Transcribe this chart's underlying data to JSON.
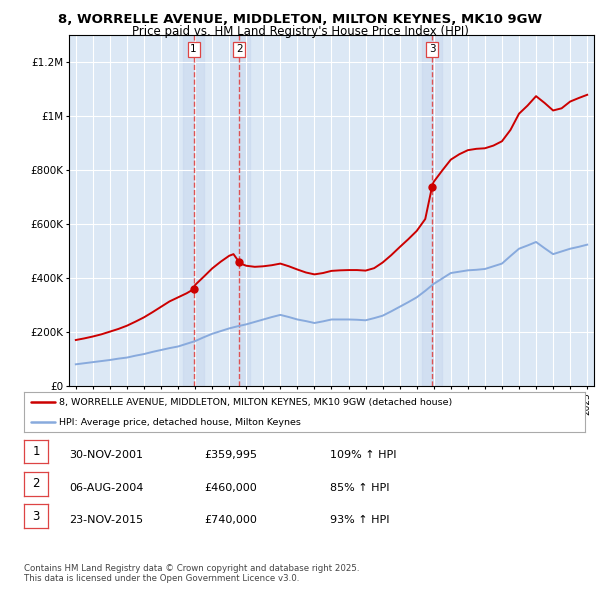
{
  "title": "8, WORRELLE AVENUE, MIDDLETON, MILTON KEYNES, MK10 9GW",
  "subtitle": "Price paid vs. HM Land Registry's House Price Index (HPI)",
  "title_fontsize": 9.5,
  "subtitle_fontsize": 8.5,
  "background_color": "#ffffff",
  "plot_bg_color": "#dce8f5",
  "grid_color": "#ffffff",
  "sale_color": "#cc0000",
  "hpi_color": "#88aadd",
  "vline_color": "#dd4444",
  "sale_dates_num": [
    2001.91,
    2004.59,
    2015.9
  ],
  "sale_prices": [
    359995,
    460000,
    740000
  ],
  "sale_labels": [
    "1",
    "2",
    "3"
  ],
  "legend_sale": "8, WORRELLE AVENUE, MIDDLETON, MILTON KEYNES, MK10 9GW (detached house)",
  "legend_hpi": "HPI: Average price, detached house, Milton Keynes",
  "table_data": [
    [
      "1",
      "30-NOV-2001",
      "£359,995",
      "109% ↑ HPI"
    ],
    [
      "2",
      "06-AUG-2004",
      "£460,000",
      "85% ↑ HPI"
    ],
    [
      "3",
      "23-NOV-2015",
      "£740,000",
      "93% ↑ HPI"
    ]
  ],
  "footer": "Contains HM Land Registry data © Crown copyright and database right 2025.\nThis data is licensed under the Open Government Licence v3.0.",
  "ylim": [
    0,
    1300000
  ],
  "yticks": [
    0,
    200000,
    400000,
    600000,
    800000,
    1000000,
    1200000
  ],
  "ytick_labels": [
    "£0",
    "£200K",
    "£400K",
    "£600K",
    "£800K",
    "£1M",
    "£1.2M"
  ],
  "hpi_x": [
    1995.0,
    1995.5,
    1996.0,
    1996.5,
    1997.0,
    1997.5,
    1998.0,
    1998.5,
    1999.0,
    1999.5,
    2000.0,
    2000.5,
    2001.0,
    2001.5,
    2002.0,
    2002.5,
    2003.0,
    2003.5,
    2004.0,
    2004.5,
    2005.0,
    2005.5,
    2006.0,
    2006.5,
    2007.0,
    2007.5,
    2008.0,
    2008.5,
    2009.0,
    2009.5,
    2010.0,
    2010.5,
    2011.0,
    2011.5,
    2012.0,
    2012.5,
    2013.0,
    2013.5,
    2014.0,
    2014.5,
    2015.0,
    2015.5,
    2016.0,
    2016.5,
    2017.0,
    2017.5,
    2018.0,
    2018.5,
    2019.0,
    2019.5,
    2020.0,
    2020.5,
    2021.0,
    2021.5,
    2022.0,
    2022.5,
    2023.0,
    2023.5,
    2024.0,
    2024.5,
    2025.0
  ],
  "hpi_y": [
    82000,
    86000,
    90000,
    94000,
    98000,
    103000,
    107000,
    114000,
    120000,
    128000,
    135000,
    142000,
    148000,
    158000,
    168000,
    182000,
    195000,
    205000,
    215000,
    223000,
    230000,
    239000,
    248000,
    257000,
    265000,
    257000,
    248000,
    242000,
    235000,
    241000,
    248000,
    248000,
    248000,
    247000,
    245000,
    253000,
    262000,
    278000,
    295000,
    312000,
    330000,
    354000,
    380000,
    400000,
    420000,
    425000,
    430000,
    432000,
    435000,
    445000,
    455000,
    483000,
    510000,
    522000,
    535000,
    512000,
    490000,
    500000,
    510000,
    517000,
    525000
  ],
  "prop_x": [
    1995.0,
    1995.5,
    1996.0,
    1996.5,
    1997.0,
    1997.5,
    1998.0,
    1998.5,
    1999.0,
    1999.5,
    2000.0,
    2000.5,
    2001.0,
    2001.5,
    2001.91,
    2002.0,
    2002.5,
    2003.0,
    2003.5,
    2004.0,
    2004.25,
    2004.59,
    2004.75,
    2005.0,
    2005.5,
    2006.0,
    2006.5,
    2007.0,
    2007.5,
    2008.0,
    2008.5,
    2009.0,
    2009.5,
    2010.0,
    2010.5,
    2011.0,
    2011.5,
    2012.0,
    2012.5,
    2013.0,
    2013.5,
    2014.0,
    2014.5,
    2015.0,
    2015.5,
    2015.9,
    2016.0,
    2016.5,
    2017.0,
    2017.5,
    2018.0,
    2018.5,
    2019.0,
    2019.5,
    2020.0,
    2020.5,
    2021.0,
    2021.5,
    2022.0,
    2022.5,
    2023.0,
    2023.5,
    2024.0,
    2024.5,
    2025.0
  ],
  "prop_y": [
    172000,
    178000,
    185000,
    193000,
    203000,
    213000,
    225000,
    240000,
    256000,
    275000,
    295000,
    315000,
    330000,
    345000,
    359995,
    376000,
    406000,
    437000,
    462000,
    484000,
    490000,
    460000,
    453000,
    447000,
    443000,
    445000,
    449000,
    455000,
    445000,
    433000,
    422000,
    415000,
    420000,
    428000,
    430000,
    431000,
    431000,
    429000,
    438000,
    459000,
    486000,
    516000,
    545000,
    576000,
    620000,
    740000,
    758000,
    800000,
    840000,
    860000,
    875000,
    880000,
    882000,
    892000,
    908000,
    950000,
    1010000,
    1040000,
    1075000,
    1050000,
    1022000,
    1030000,
    1055000,
    1068000,
    1080000
  ]
}
